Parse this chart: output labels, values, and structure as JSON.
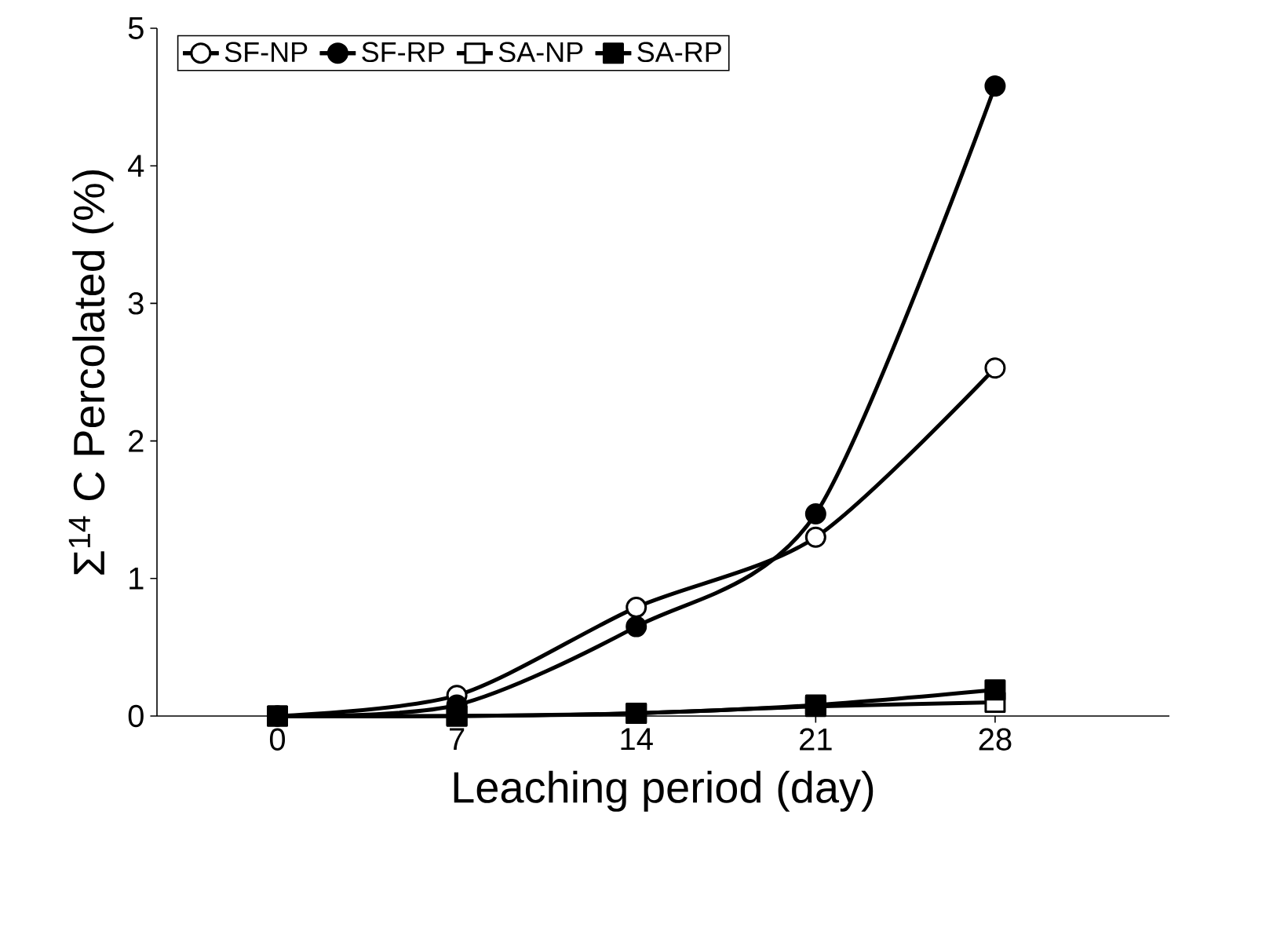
{
  "chart_data": {
    "type": "line",
    "xlabel": "Leaching period (day)",
    "ylabel": "Σ$^{14}$ C Percolated (%)",
    "x": [
      0,
      7,
      14,
      21,
      28
    ],
    "xlim": [
      -4.7,
      34.8
    ],
    "xticks": [
      0,
      7,
      14,
      21,
      28
    ],
    "ylim": [
      0,
      5
    ],
    "yticks": [
      0,
      1,
      2,
      3,
      4,
      5
    ],
    "series": [
      {
        "name": "SF-NP",
        "color": "#000000",
        "marker": "circle",
        "values": [
          0,
          0.15,
          0.79,
          1.3,
          2.53
        ]
      },
      {
        "name": "SF-RP",
        "color": "#000000",
        "marker": "circle",
        "values": [
          0,
          0.08,
          0.65,
          1.47,
          4.58
        ]
      },
      {
        "name": "SA-NP",
        "color": "#000000",
        "marker": "square",
        "values": [
          0,
          0,
          0.02,
          0.07,
          0.1
        ]
      },
      {
        "name": "SA-RP",
        "color": "#000000",
        "marker": "square",
        "values": [
          0,
          0,
          0.02,
          0.08,
          0.19
        ]
      }
    ],
    "legend": "top left",
    "grid": false,
    "line_style": "solid"
  }
}
